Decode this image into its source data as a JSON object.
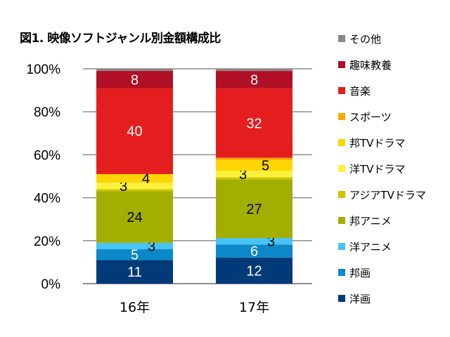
{
  "chart_data": {
    "type": "bar",
    "stacked": true,
    "title": "図1.  映像ソフトジャンル別金額構成比",
    "xlabel": "",
    "ylabel": "",
    "ylim": [
      0,
      100
    ],
    "yticks": [
      "0%",
      "20%",
      "40%",
      "60%",
      "80%",
      "100%"
    ],
    "categories": [
      "16年",
      "17年"
    ],
    "grid": true,
    "legend_position": "right",
    "series": [
      {
        "name": "洋画",
        "color": "#003a78",
        "label_color": "#ffffff",
        "values": [
          11,
          12
        ],
        "labels": [
          "11",
          "12"
        ]
      },
      {
        "name": "邦画",
        "color": "#0a88c8",
        "label_color": "#ffffff",
        "values": [
          5,
          6
        ],
        "labels": [
          "5",
          "6"
        ]
      },
      {
        "name": "洋アニメ",
        "color": "#47c3f5",
        "label_color": "#000000",
        "values": [
          3,
          3
        ],
        "labels": [
          "3",
          "3"
        ]
      },
      {
        "name": "邦アニメ",
        "color": "#a2af00",
        "label_color": "#000000",
        "values": [
          24,
          27
        ],
        "labels": [
          "24",
          "27"
        ]
      },
      {
        "name": "アジアTVドラマ",
        "color": "#cdc300",
        "label_color": "#000000",
        "values": [
          1,
          1
        ],
        "labels": [
          "",
          ""
        ]
      },
      {
        "name": "洋TVドラマ",
        "color": "#fff23c",
        "label_color": "#000000",
        "values": [
          3,
          3
        ],
        "labels": [
          "3",
          "3"
        ]
      },
      {
        "name": "邦TVドラマ",
        "color": "#ffd400",
        "label_color": "#000000",
        "values": [
          4,
          5
        ],
        "labels": [
          "4",
          "5"
        ]
      },
      {
        "name": "スポーツ",
        "color": "#f7a800",
        "label_color": "#000000",
        "values": [
          0,
          1
        ],
        "labels": [
          "",
          ""
        ]
      },
      {
        "name": "音楽",
        "color": "#e41e1e",
        "label_color": "#ffffff",
        "values": [
          40,
          32
        ],
        "labels": [
          "40",
          "32"
        ]
      },
      {
        "name": "趣味教養",
        "color": "#b10f25",
        "label_color": "#ffffff",
        "values": [
          8,
          8
        ],
        "labels": [
          "8",
          "8"
        ]
      },
      {
        "name": "その他",
        "color": "#8e8585",
        "label_color": "#ffffff",
        "values": [
          1,
          1
        ],
        "labels": [
          "",
          ""
        ]
      }
    ]
  }
}
